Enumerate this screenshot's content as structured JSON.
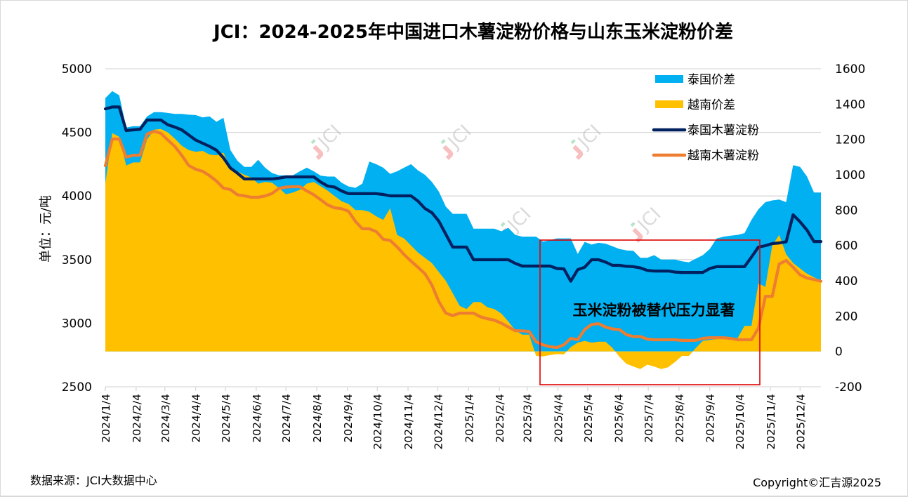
{
  "title": "JCI：2024-2025年中国进口木薯淀粉价格与山东玉米淀粉价差",
  "source": "数据来源：JCI大数据中心",
  "copyright": "Copyright©汇吉源2025",
  "watermark_text": "JCI",
  "annotation": "玉米淀粉被替代压力显著",
  "colors": {
    "thai_spread": "#00B0F0",
    "vietnam_spread": "#FFC000",
    "thai_starch": "#002060",
    "vietnam_starch": "#ED7D31",
    "annotation_box": "#E00000",
    "grid": "#D9D9D9"
  },
  "chart_data": {
    "type": "area+line",
    "title": "JCI：2024-2025年中国进口木薯淀粉价格与山东玉米淀粉价差",
    "ylabel": "单位：元/吨",
    "y_left": {
      "min": 2500,
      "max": 5000,
      "step": 500,
      "ticks": [
        "5000",
        "4500",
        "4000",
        "3500",
        "3000",
        "2500"
      ]
    },
    "y_right": {
      "min": -200,
      "max": 1600,
      "step": 200,
      "ticks": [
        "1600",
        "1400",
        "1200",
        "1000",
        "800",
        "600",
        "400",
        "200",
        "0",
        "-200"
      ]
    },
    "x_ticks": [
      "2024/1/4",
      "2024/2/4",
      "2024/3/4",
      "2024/4/4",
      "2024/5/4",
      "2024/6/4",
      "2024/7/4",
      "2024/8/4",
      "2024/9/4",
      "2024/10/4",
      "2024/11/4",
      "2024/12/4",
      "2025/1/4",
      "2025/2/4",
      "2025/3/4",
      "2025/4/4",
      "2025/5/4",
      "2025/6/4",
      "2025/7/4",
      "2025/8/4",
      "2025/9/4",
      "2025/10/4",
      "2025/11/4",
      "2025/12/4"
    ],
    "x_start": "2024/1/4",
    "x_interval_days": 7,
    "x_end": "2025/12/25",
    "grid": "horizontal",
    "legend_position": "top-right",
    "legend": [
      {
        "key": "thai_spread",
        "label": "泰国价差",
        "kind": "area"
      },
      {
        "key": "vietnam_spread",
        "label": "越南价差",
        "kind": "area"
      },
      {
        "key": "thai_starch",
        "label": "泰国木薯淀粉",
        "kind": "line"
      },
      {
        "key": "vietnam_starch",
        "label": "越南木薯淀粉",
        "kind": "line"
      }
    ],
    "series": [
      {
        "key": "thai_spread",
        "name": "泰国价差",
        "axis": "right",
        "type": "area",
        "values": [
          1434,
          1474,
          1450,
          1267,
          1275,
          1275,
          1330,
          1355,
          1355,
          1350,
          1345,
          1345,
          1340,
          1338,
          1325,
          1330,
          1300,
          1323,
          1140,
          1080,
          1045,
          1045,
          1085,
          1040,
          1010,
          997,
          997,
          997,
          1020,
          1040,
          1020,
          995,
          990,
          990,
          955,
          934,
          926,
          950,
          1075,
          1060,
          1040,
          1005,
          1020,
          1040,
          1060,
          1025,
          1000,
          960,
          905,
          820,
          779,
          779,
          779,
          695,
          695,
          695,
          695,
          680,
          700,
          660,
          650,
          650,
          650,
          622,
          630,
          640,
          640,
          640,
          552,
          620,
          605,
          615,
          610,
          595,
          580,
          572,
          570,
          530,
          530,
          545,
          520,
          520,
          520,
          510,
          505,
          525,
          545,
          580,
          640,
          650,
          655,
          660,
          670,
          745,
          805,
          845,
          855,
          860,
          845,
          1055,
          1045,
          990,
          900,
          900
        ]
      },
      {
        "key": "vietnam_spread",
        "name": "越南价差",
        "axis": "right",
        "type": "area",
        "values": [
          950,
          1236,
          1215,
          1053,
          1070,
          1070,
          1200,
          1255,
          1259,
          1240,
          1205,
          1165,
          1140,
          1130,
          1135,
          1115,
          1110,
          1125,
          1040,
          1020,
          1000,
          985,
          950,
          960,
          955,
          925,
          890,
          900,
          915,
          950,
          960,
          935,
          910,
          880,
          850,
          835,
          800,
          800,
          790,
          765,
          745,
          810,
          660,
          640,
          600,
          560,
          530,
          500,
          450,
          400,
          330,
          258,
          240,
          280,
          280,
          250,
          240,
          215,
          170,
          120,
          95,
          95,
          -25,
          -28,
          -20,
          -15,
          -17,
          25,
          50,
          60,
          50,
          55,
          55,
          20,
          -30,
          -70,
          -85,
          -100,
          -75,
          -85,
          -100,
          -90,
          -60,
          -25,
          -25,
          20,
          60,
          65,
          70,
          72,
          65,
          75,
          145,
          145,
          385,
          365,
          600,
          660,
          550,
          500,
          470,
          440,
          420,
          400
        ]
      },
      {
        "key": "thai_starch",
        "name": "泰国木薯淀粉",
        "axis": "left",
        "type": "line",
        "values": [
          4685,
          4700,
          4700,
          4514,
          4520,
          4525,
          4597,
          4597,
          4597,
          4560,
          4542,
          4520,
          4480,
          4440,
          4415,
          4390,
          4360,
          4300,
          4220,
          4180,
          4134,
          4134,
          4134,
          4134,
          4134,
          4140,
          4150,
          4150,
          4150,
          4150,
          4150,
          4110,
          4078,
          4070,
          4040,
          4018,
          4018,
          4018,
          4018,
          4018,
          4012,
          4001,
          4001,
          4001,
          4001,
          3960,
          3902,
          3869,
          3802,
          3700,
          3598,
          3598,
          3598,
          3499,
          3499,
          3499,
          3499,
          3499,
          3499,
          3470,
          3449,
          3449,
          3449,
          3449,
          3449,
          3430,
          3427,
          3330,
          3421,
          3440,
          3499,
          3499,
          3480,
          3455,
          3455,
          3447,
          3444,
          3435,
          3415,
          3410,
          3410,
          3410,
          3402,
          3399,
          3399,
          3399,
          3399,
          3430,
          3444,
          3444,
          3444,
          3444,
          3444,
          3520,
          3598,
          3609,
          3626,
          3631,
          3640,
          3852,
          3797,
          3731,
          3642,
          3642
        ]
      },
      {
        "key": "vietnam_starch",
        "name": "越南木薯淀粉",
        "axis": "left",
        "type": "line",
        "values": [
          4238,
          4448,
          4448,
          4305,
          4320,
          4320,
          4487,
          4509,
          4493,
          4440,
          4390,
          4320,
          4240,
          4210,
          4194,
          4160,
          4117,
          4062,
          4050,
          4010,
          4001,
          3990,
          3990,
          4000,
          4020,
          4060,
          4070,
          4073,
          4073,
          4040,
          4010,
          3970,
          3930,
          3907,
          3900,
          3880,
          3800,
          3742,
          3742,
          3720,
          3660,
          3650,
          3600,
          3540,
          3488,
          3440,
          3389,
          3300,
          3170,
          3079,
          3060,
          3079,
          3079,
          3079,
          3050,
          3035,
          3024,
          3000,
          2970,
          2941,
          2940,
          2935,
          2853,
          2830,
          2815,
          2809,
          2830,
          2881,
          2870,
          2950,
          2990,
          2996,
          2970,
          2955,
          2950,
          2910,
          2895,
          2895,
          2875,
          2870,
          2870,
          2870,
          2870,
          2865,
          2865,
          2865,
          2880,
          2886,
          2886,
          2886,
          2880,
          2870,
          2870,
          2870,
          2960,
          3211,
          3211,
          3465,
          3493,
          3440,
          3380,
          3355,
          3344,
          3330
        ]
      }
    ]
  }
}
